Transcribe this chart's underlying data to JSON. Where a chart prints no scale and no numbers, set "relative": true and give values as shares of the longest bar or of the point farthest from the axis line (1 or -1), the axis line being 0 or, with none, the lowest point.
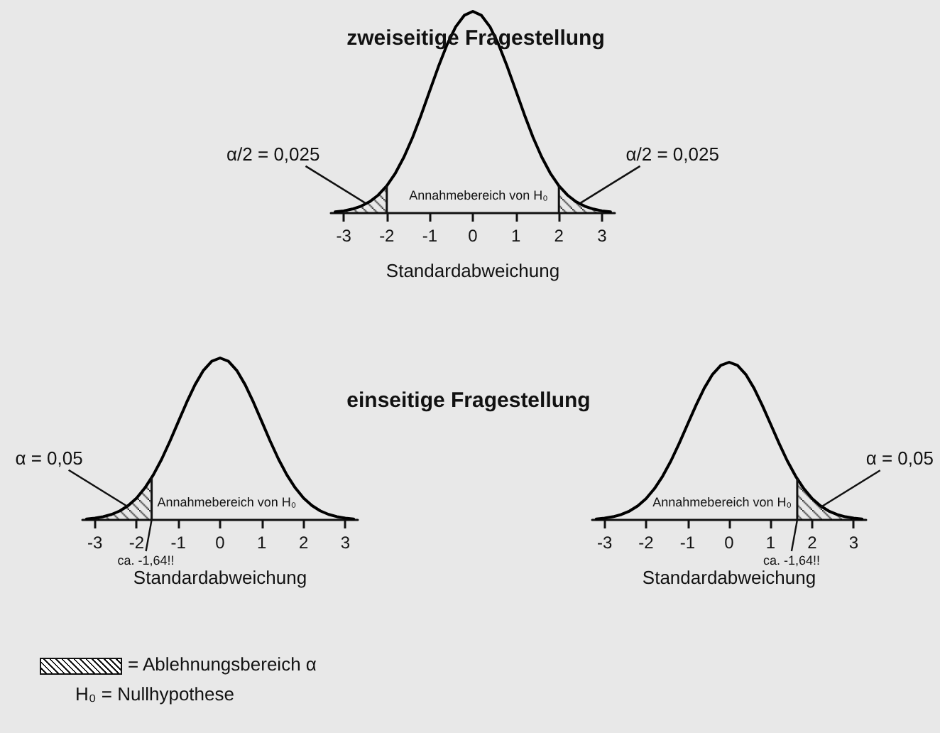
{
  "chart_data": [
    {
      "type": "line",
      "title": "zweiseitige Fragestellung",
      "xlabel": "Standardabweichung",
      "relative": true,
      "xlim": [
        -3.3,
        3.3
      ],
      "xticks": [
        -3,
        -2,
        -1,
        0,
        1,
        2,
        3
      ],
      "series": [
        {
          "type": "area",
          "color": "#000000",
          "x": [
            -3.2,
            -3.0,
            -2.8,
            -2.6,
            -2.4,
            -2.2,
            -2.0
          ],
          "values": [
            0.006,
            0.011,
            0.02,
            0.034,
            0.056,
            0.089,
            0.135
          ]
        },
        {
          "type": "area",
          "color": "#000000",
          "x": [
            2.0,
            2.2,
            2.4,
            2.6,
            2.8,
            3.0,
            3.2
          ],
          "values": [
            0.135,
            0.089,
            0.056,
            0.034,
            0.02,
            0.011,
            0.006
          ]
        },
        {
          "type": "line",
          "color": "#000000",
          "x": [
            -3.2,
            -3.0,
            -2.8,
            -2.6,
            -2.4,
            -2.2,
            -2.0,
            -1.8,
            -1.6,
            -1.4,
            -1.2,
            -1.0,
            -0.8,
            -0.6,
            -0.4,
            -0.2,
            0,
            0.2,
            0.4,
            0.6,
            0.8,
            1.0,
            1.2,
            1.4,
            1.6,
            1.8,
            2.0,
            2.2,
            2.4,
            2.6,
            2.8,
            3.0,
            3.2
          ],
          "values": [
            0.006,
            0.011,
            0.02,
            0.034,
            0.056,
            0.089,
            0.135,
            0.198,
            0.278,
            0.375,
            0.487,
            0.607,
            0.726,
            0.835,
            0.923,
            0.98,
            1,
            0.98,
            0.923,
            0.835,
            0.726,
            0.607,
            0.487,
            0.375,
            0.278,
            0.198,
            0.135,
            0.089,
            0.056,
            0.034,
            0.02,
            0.011,
            0.006
          ]
        }
      ],
      "ref_lines": [
        {
          "axis": "x",
          "value": -2
        },
        {
          "axis": "x",
          "value": 2
        }
      ],
      "annotations": [
        {
          "text": "α/2 = 0,025",
          "x": -2.5,
          "y": 0.05
        },
        {
          "text": "α/2 = 0,025",
          "x": 2.5,
          "y": 0.05
        },
        "Annahmebereich von H₀"
      ]
    },
    {
      "type": "line",
      "title": "einseitige Fragestellung",
      "xlabel": "Standardabweichung",
      "relative": true,
      "xlim": [
        -3.3,
        3.3
      ],
      "xticks": [
        -3,
        -2,
        -1,
        0,
        1,
        2,
        3
      ],
      "series": [
        {
          "type": "area",
          "color": "#000000",
          "x": [
            -3.2,
            -3.0,
            -2.8,
            -2.6,
            -2.4,
            -2.2,
            -2.0,
            -1.8,
            -1.64
          ],
          "values": [
            0.006,
            0.011,
            0.02,
            0.034,
            0.056,
            0.089,
            0.135,
            0.198,
            0.26
          ]
        },
        {
          "type": "line",
          "color": "#000000",
          "x": [
            -3.2,
            -3.0,
            -2.8,
            -2.6,
            -2.4,
            -2.2,
            -2.0,
            -1.8,
            -1.6,
            -1.4,
            -1.2,
            -1.0,
            -0.8,
            -0.6,
            -0.4,
            -0.2,
            0,
            0.2,
            0.4,
            0.6,
            0.8,
            1.0,
            1.2,
            1.4,
            1.6,
            1.8,
            2.0,
            2.2,
            2.4,
            2.6,
            2.8,
            3.0,
            3.2
          ],
          "values": [
            0.006,
            0.011,
            0.02,
            0.034,
            0.056,
            0.089,
            0.135,
            0.198,
            0.278,
            0.375,
            0.487,
            0.607,
            0.726,
            0.835,
            0.923,
            0.98,
            1,
            0.98,
            0.923,
            0.835,
            0.726,
            0.607,
            0.487,
            0.375,
            0.278,
            0.198,
            0.135,
            0.089,
            0.056,
            0.034,
            0.02,
            0.011,
            0.006
          ]
        }
      ],
      "ref_lines": [
        {
          "axis": "x",
          "value": -1.64,
          "label": "ca. -1,64!!"
        }
      ],
      "annotations": [
        {
          "text": "α = 0,05",
          "x": -2.2,
          "y": 0.08
        },
        "Annahmebereich von H₀"
      ]
    },
    {
      "type": "line",
      "xlabel": "Standardabweichung",
      "relative": true,
      "xlim": [
        -3.3,
        3.3
      ],
      "xticks": [
        -3,
        -2,
        -1,
        0,
        1,
        2,
        3
      ],
      "series": [
        {
          "type": "area",
          "color": "#000000",
          "x": [
            1.64,
            1.8,
            2.0,
            2.2,
            2.4,
            2.6,
            2.8,
            3.0,
            3.2
          ],
          "values": [
            0.26,
            0.198,
            0.135,
            0.089,
            0.056,
            0.034,
            0.02,
            0.011,
            0.006
          ]
        },
        {
          "type": "line",
          "color": "#000000",
          "x": [
            -3.2,
            -3.0,
            -2.8,
            -2.6,
            -2.4,
            -2.2,
            -2.0,
            -1.8,
            -1.6,
            -1.4,
            -1.2,
            -1.0,
            -0.8,
            -0.6,
            -0.4,
            -0.2,
            0,
            0.2,
            0.4,
            0.6,
            0.8,
            1.0,
            1.2,
            1.4,
            1.6,
            1.8,
            2.0,
            2.2,
            2.4,
            2.6,
            2.8,
            3.0,
            3.2
          ],
          "values": [
            0.006,
            0.011,
            0.02,
            0.034,
            0.056,
            0.089,
            0.135,
            0.198,
            0.278,
            0.375,
            0.487,
            0.607,
            0.726,
            0.835,
            0.923,
            0.98,
            1,
            0.98,
            0.923,
            0.835,
            0.726,
            0.607,
            0.487,
            0.375,
            0.278,
            0.198,
            0.135,
            0.089,
            0.056,
            0.034,
            0.02,
            0.011,
            0.006
          ]
        }
      ],
      "ref_lines": [
        {
          "axis": "x",
          "value": 1.64,
          "label": "ca. -1,64!!"
        }
      ],
      "annotations": [
        {
          "text": "α = 0,05",
          "x": 2.2,
          "y": 0.08
        },
        "Annahmebereich von H₀",
        "= Ablehnungsbereich α",
        "H₀ = Nullhypothese"
      ]
    }
  ]
}
